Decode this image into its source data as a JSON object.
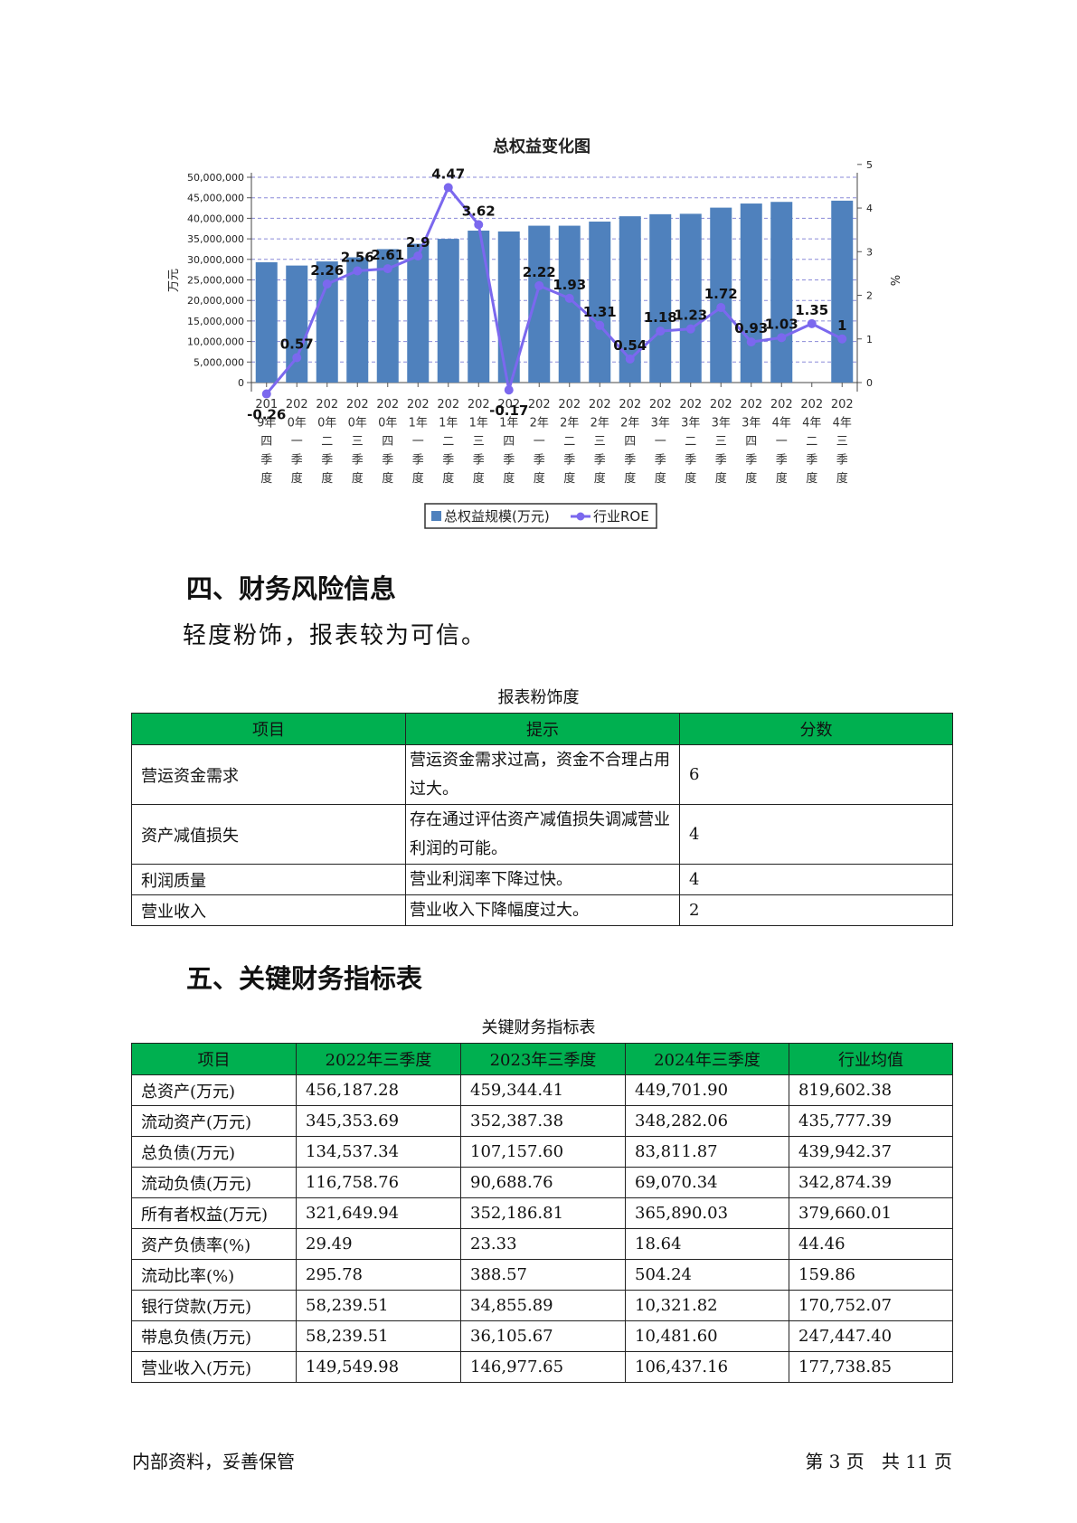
{
  "chart_data": {
    "type": "bar+line",
    "title": "总权益变化图",
    "ylabel_left": "万元",
    "ylabel_right": "%",
    "y_left_ticks": [
      "0",
      "5,000,000",
      "10,000,000",
      "15,000,000",
      "20,000,000",
      "25,000,000",
      "30,000,000",
      "35,000,000",
      "40,000,000",
      "45,000,000",
      "50,000,000"
    ],
    "y_right_ticks": [
      "0",
      "1",
      "2",
      "3",
      "4",
      "5"
    ],
    "y_left_range": [
      0,
      50000000
    ],
    "y_right_range": [
      -1,
      5
    ],
    "grid": true,
    "legend_position": "bottom",
    "categories": [
      "2019年四季度",
      "2020年一季度",
      "2020年二季度",
      "2020年三季度",
      "2020年四季度",
      "2021年一季度",
      "2021年二季度",
      "2021年三季度",
      "2021年四季度",
      "2022年一季度",
      "2022年二季度",
      "2022年三季度",
      "2022年四季度",
      "2023年一季度",
      "2023年二季度",
      "2023年三季度",
      "2023年四季度",
      "2024年一季度",
      "2024年二季度",
      "2024年三季度"
    ],
    "series": [
      {
        "name": "总权益规模(万元)",
        "type": "bar",
        "axis": "left",
        "color": "#4f81bd",
        "values": [
          29300000,
          28500000,
          29500000,
          30500000,
          32500000,
          33800000,
          35000000,
          37000000,
          36800000,
          38200000,
          38200000,
          39200000,
          40500000,
          41000000,
          41100000,
          42600000,
          43600000,
          44000000,
          null,
          44300000
        ]
      },
      {
        "name": "行业ROE",
        "type": "line",
        "axis": "right",
        "color": "#7b68ee",
        "values": [
          -0.26,
          0.57,
          2.26,
          2.56,
          2.61,
          2.9,
          4.47,
          3.62,
          -0.17,
          2.22,
          1.93,
          1.31,
          0.54,
          1.18,
          1.23,
          1.72,
          0.93,
          1.03,
          1.35,
          1
        ],
        "labels": [
          "-0.26",
          "0.57",
          "2.26",
          "2.56",
          "2.61",
          "2.9",
          "4.47",
          "3.62",
          "-0.17",
          "2.22",
          "1.93",
          "1.31",
          "0.54",
          "1.18",
          "1.23",
          "1.72",
          "0.93",
          "1.03",
          "1.35",
          "1"
        ]
      }
    ]
  },
  "section4": {
    "heading": "四、财务风险信息",
    "text": "轻度粉饰，报表较为可信。",
    "table_caption": "报表粉饰度",
    "headers": [
      "项目",
      "提示",
      "分数"
    ],
    "rows": [
      {
        "item": "营运资金需求",
        "tip": "营运资金需求过高，资金不合理占用过大。",
        "score": "6"
      },
      {
        "item": "资产减值损失",
        "tip": "存在通过评估资产减值损失调减营业利润的可能。",
        "score": "4"
      },
      {
        "item": "利润质量",
        "tip": "营业利润率下降过快。",
        "score": "4"
      },
      {
        "item": "营业收入",
        "tip": "营业收入下降幅度过大。",
        "score": "2"
      }
    ]
  },
  "section5": {
    "heading": "五、关键财务指标表",
    "table_caption": "关键财务指标表",
    "headers": [
      "项目",
      "2022年三季度",
      "2023年三季度",
      "2024年三季度",
      "行业均值"
    ],
    "rows": [
      [
        "总资产(万元)",
        "456,187.28",
        "459,344.41",
        "449,701.90",
        "819,602.38"
      ],
      [
        "流动资产(万元)",
        "345,353.69",
        "352,387.38",
        "348,282.06",
        "435,777.39"
      ],
      [
        "总负债(万元)",
        "134,537.34",
        "107,157.60",
        "83,811.87",
        "439,942.37"
      ],
      [
        "流动负债(万元)",
        "116,758.76",
        "90,688.76",
        "69,070.34",
        "342,874.39"
      ],
      [
        "所有者权益(万元)",
        "321,649.94",
        "352,186.81",
        "365,890.03",
        "379,660.01"
      ],
      [
        "资产负债率(%)",
        "29.49",
        "23.33",
        "18.64",
        "44.46"
      ],
      [
        "流动比率(%)",
        "295.78",
        "388.57",
        "504.24",
        "159.86"
      ],
      [
        "银行贷款(万元)",
        "58,239.51",
        "34,855.89",
        "10,321.82",
        "170,752.07"
      ],
      [
        "带息负债(万元)",
        "58,239.51",
        "36,105.67",
        "10,481.60",
        "247,447.40"
      ],
      [
        "营业收入(万元)",
        "149,549.98",
        "146,977.65",
        "106,437.16",
        "177,738.85"
      ]
    ]
  },
  "footer": {
    "left": "内部资料，妥善保管",
    "right": "第 3 页   共 11 页"
  }
}
